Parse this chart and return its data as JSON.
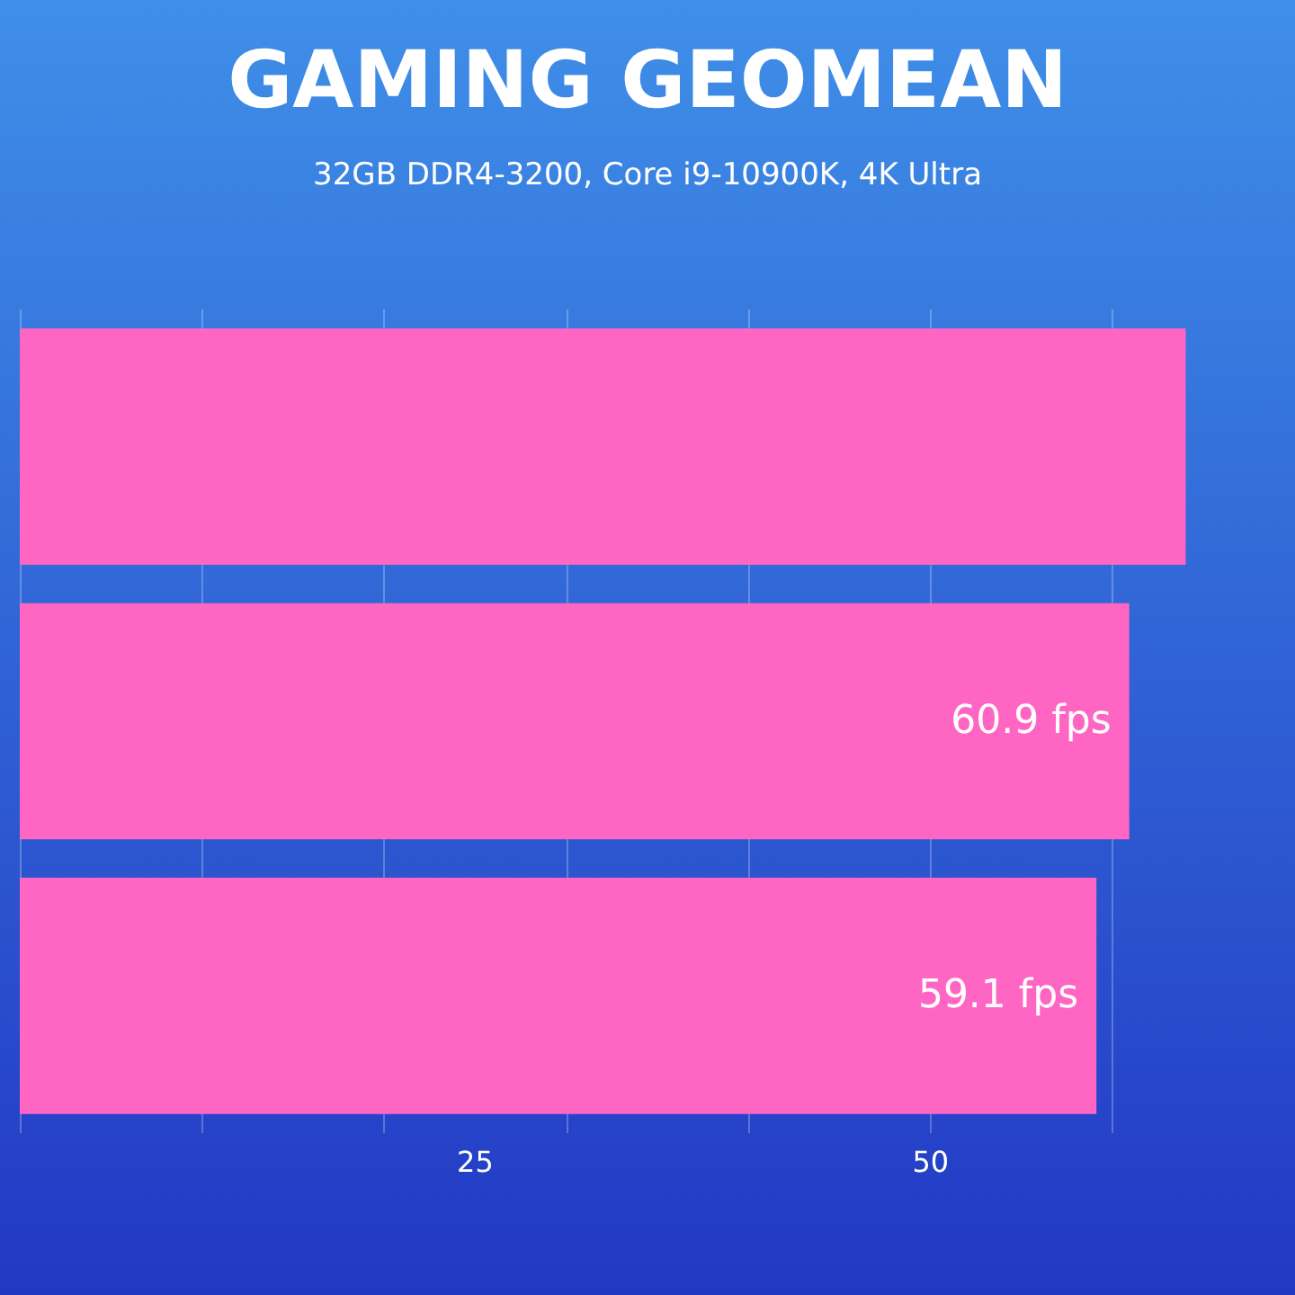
{
  "chart_data": {
    "type": "bar",
    "orientation": "horizontal",
    "title": "GAMING GEOMEAN",
    "subtitle": "32GB DDR4-3200, Core i9-10900K, 4K Ultra",
    "categories": [
      null,
      null,
      null
    ],
    "values": [
      64,
      60.9,
      59.1
    ],
    "value_labels": [
      null,
      "60.9 fps",
      "59.1 fps"
    ],
    "color": "#ff66c4",
    "xlim": [
      0,
      70
    ],
    "xticks": [
      25,
      50
    ],
    "grid": "x"
  }
}
